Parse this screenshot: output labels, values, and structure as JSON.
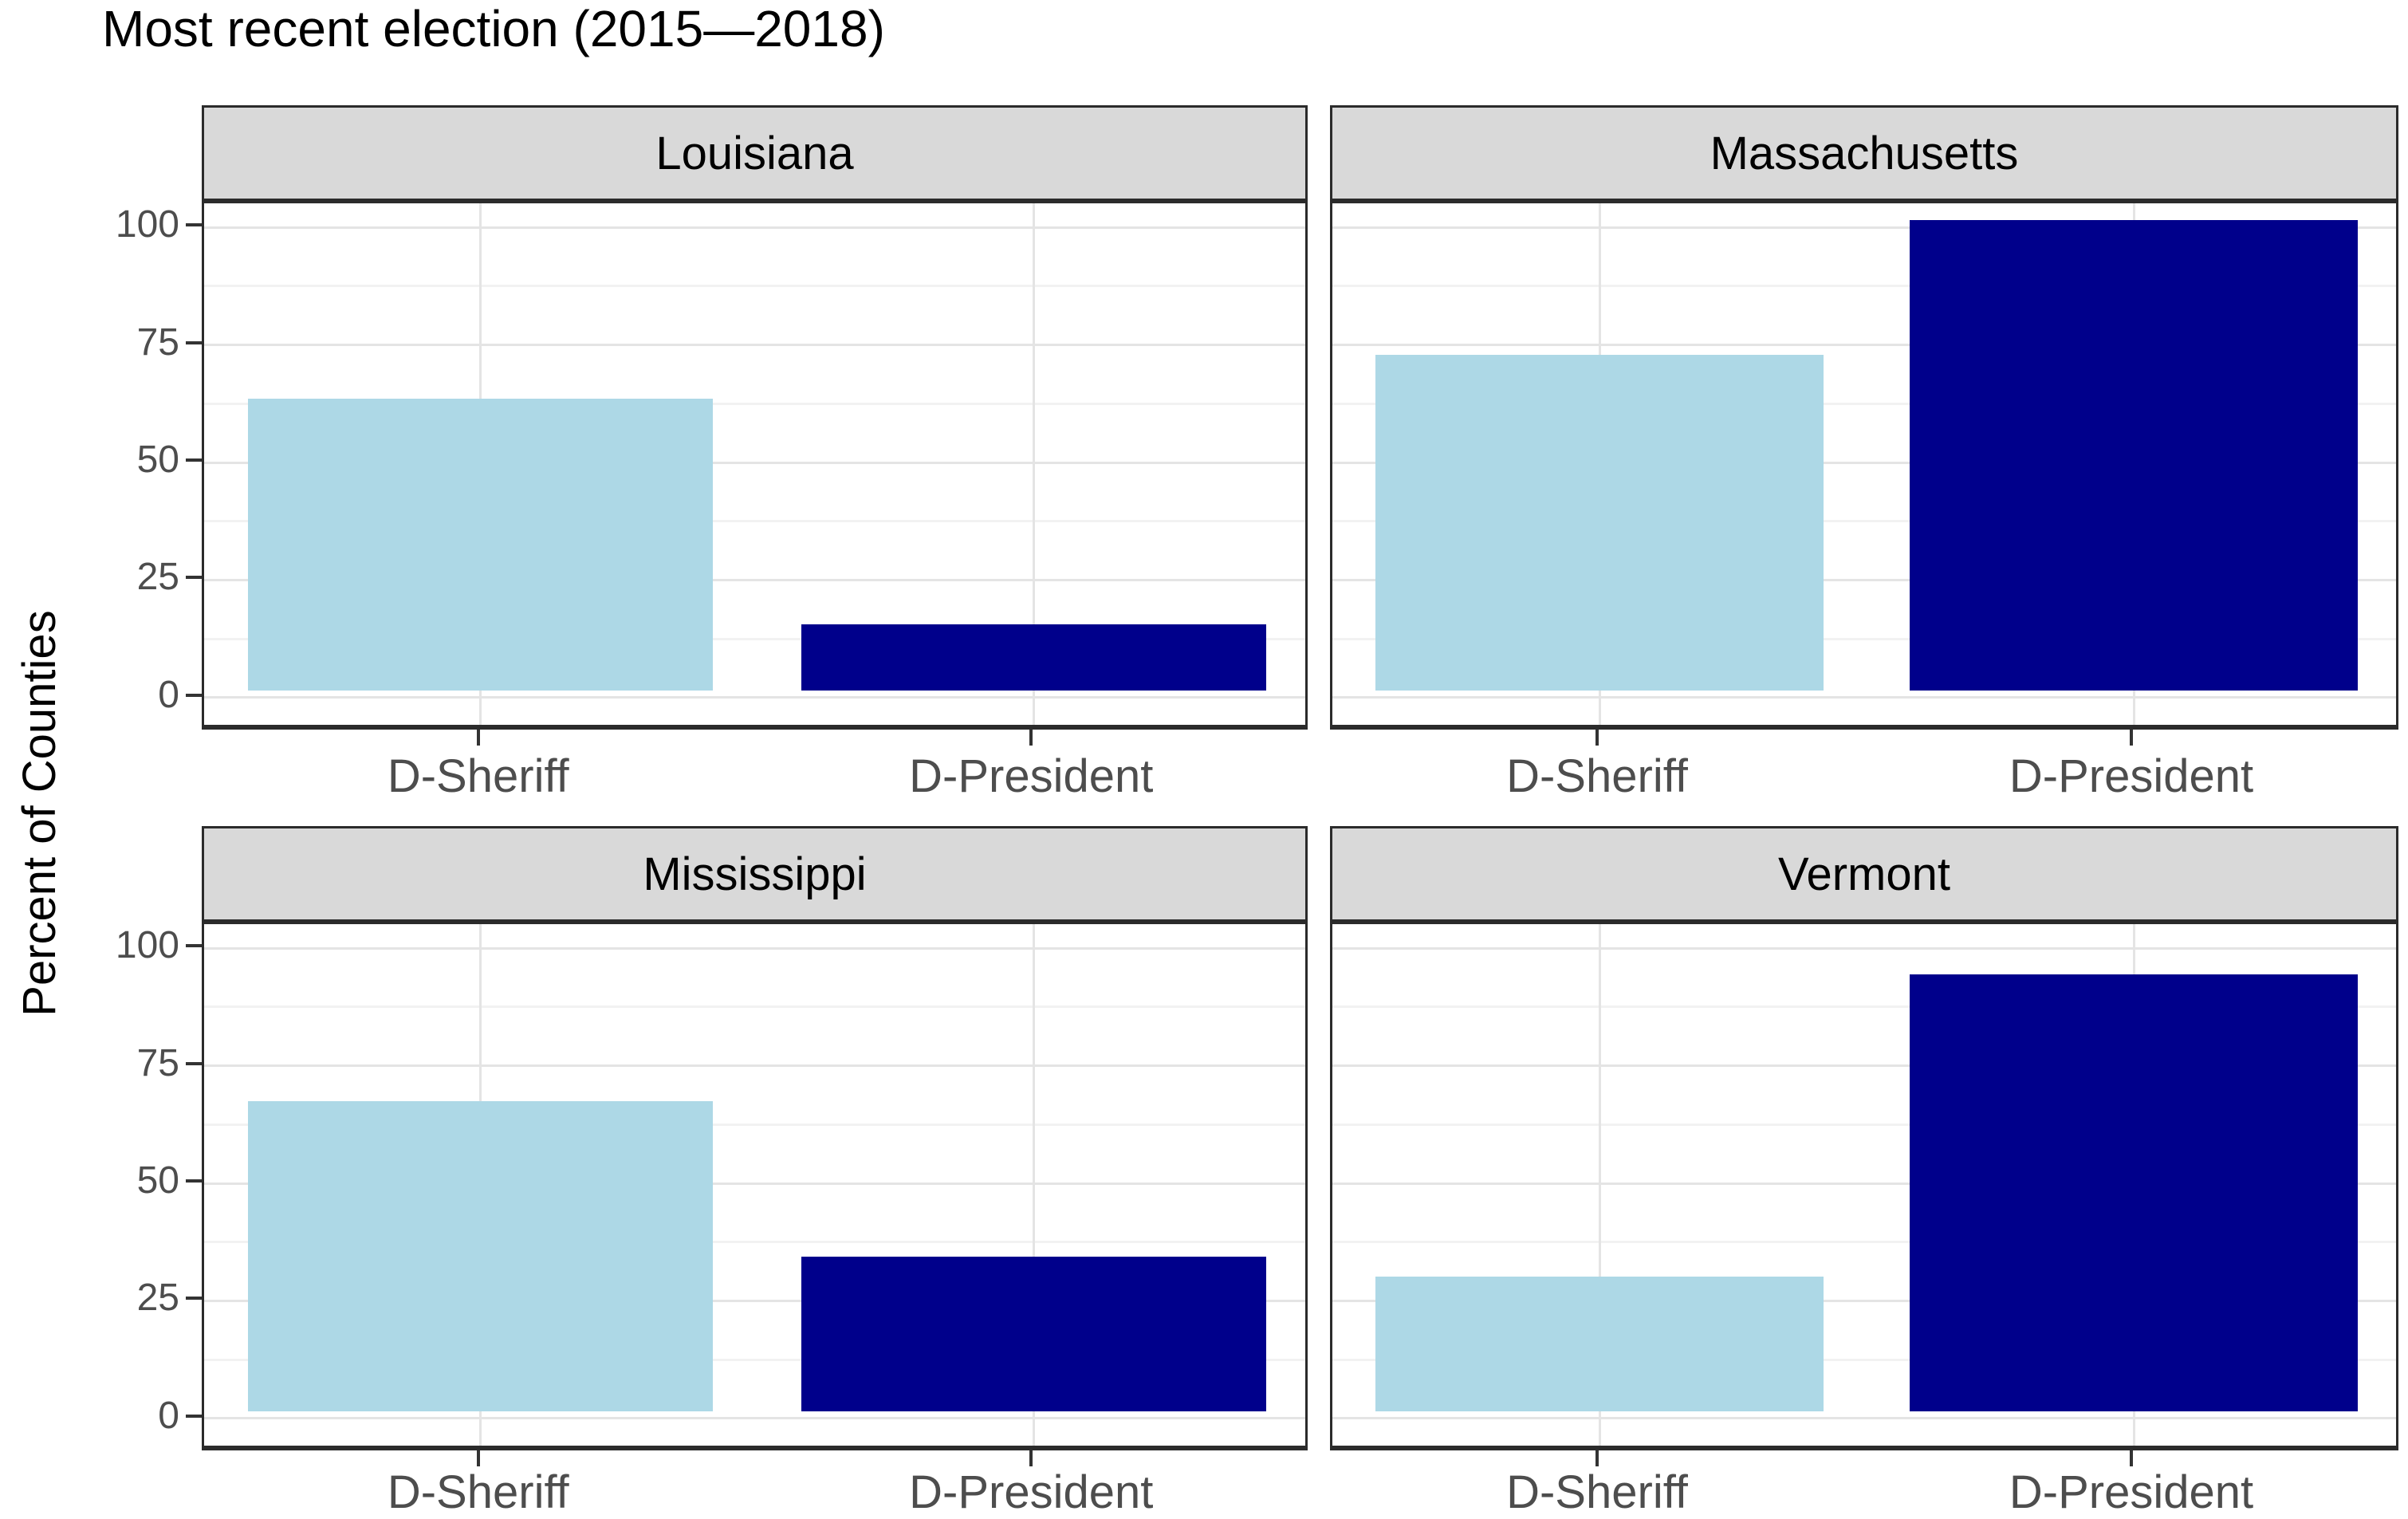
{
  "title": "Most recent election (2015—2018)",
  "y_axis": {
    "label": "Percent of Counties",
    "tick_labels": [
      "100",
      "75",
      "50",
      "25",
      "0"
    ],
    "ticks": [
      100,
      75,
      50,
      25,
      0
    ]
  },
  "x_axis": {
    "categories": [
      "D-Sheriff",
      "D-President"
    ]
  },
  "facet_titles": [
    "Louisiana",
    "Massachusetts",
    "Mississippi",
    "Vermont"
  ],
  "colors": {
    "sheriff_bar": "#ADD8E6",
    "president_bar": "#00008B",
    "strip_bg": "#D9D9D9",
    "panel_bg": "#FFFFFF",
    "panel_border": "#2B2B2B",
    "grid_major": "#E4E4E4",
    "grid_minor": "#F2F2F2",
    "axis_text": "#4D4D4D",
    "tick_mark": "#333333",
    "title_text": "#000000"
  },
  "chart_data": {
    "type": "bar",
    "title": "Most recent election (2015—2018)",
    "xlabel": "",
    "ylabel": "Percent of Counties",
    "ylim": [
      0,
      100
    ],
    "yticks": [
      0,
      25,
      50,
      75,
      100
    ],
    "yticks_minor": [
      12.5,
      37.5,
      62.5,
      87.5
    ],
    "grid": true,
    "legend": "none",
    "categories": [
      "D-Sheriff",
      "D-President"
    ],
    "facets": [
      {
        "name": "Louisiana",
        "values": [
          62,
          14
        ]
      },
      {
        "name": "Massachusetts",
        "values": [
          71.4,
          100
        ]
      },
      {
        "name": "Mississippi",
        "values": [
          65.9,
          32.9
        ]
      },
      {
        "name": "Vermont",
        "values": [
          28.6,
          92.9
        ]
      }
    ]
  }
}
